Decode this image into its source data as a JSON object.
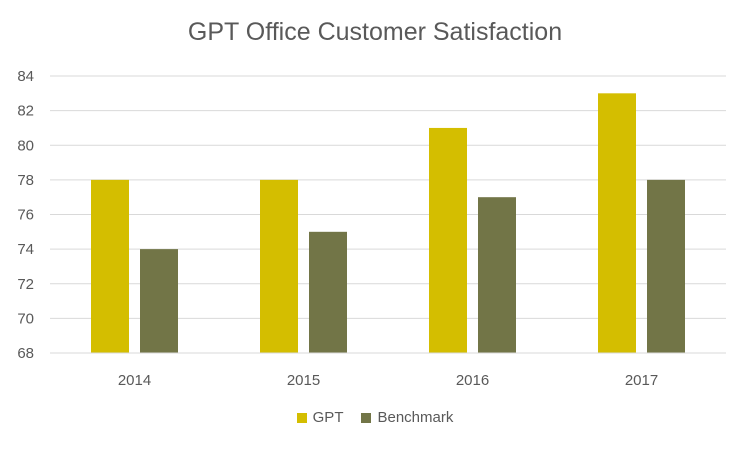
{
  "chart_data": {
    "type": "bar",
    "title": "GPT Office Customer Satisfaction",
    "xlabel": "",
    "ylabel": "",
    "categories": [
      "2014",
      "2015",
      "2016",
      "2017"
    ],
    "series": [
      {
        "name": "GPT",
        "values": [
          78,
          78,
          81,
          83
        ],
        "color": "#D4BE00"
      },
      {
        "name": "Benchmark",
        "values": [
          74,
          75,
          77,
          78
        ],
        "color": "#727547"
      }
    ],
    "ylim": [
      68,
      84
    ],
    "yticks": [
      "68",
      "70",
      "72",
      "74",
      "76",
      "78",
      "80",
      "82",
      "84"
    ],
    "grid": true,
    "legend_position": "bottom"
  },
  "colors": {
    "gridline": "#D9D9D9",
    "axis_text": "#595959"
  }
}
